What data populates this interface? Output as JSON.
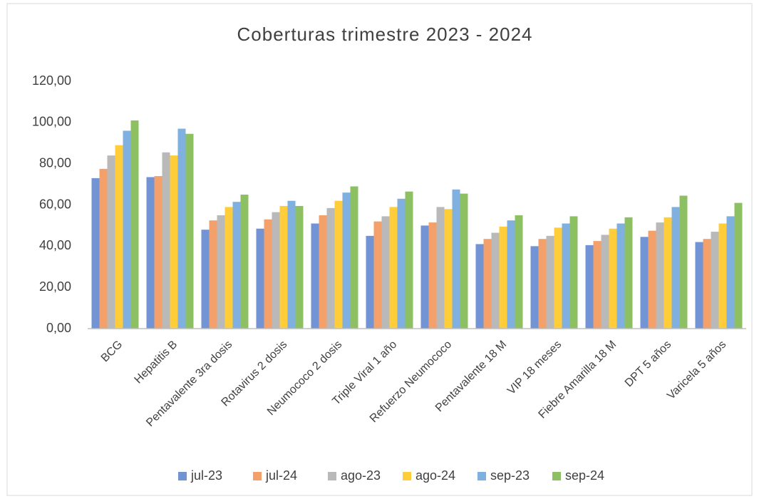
{
  "chart_data": {
    "type": "bar",
    "title": "Coberturas trimestre 2023 - 2024",
    "categories": [
      "BCG",
      "Hepatitis B",
      "Pentavalente  3ra dosis",
      "Rotavirus 2 dosis",
      "Neumococo  2 dosis",
      "Triple Viral 1 año",
      "Refuerzo  Neumococo",
      "Pentavalente  18 M",
      "VIP 18 meses",
      "Fiebre Amarilla 18 M",
      "DPT 5 años",
      "Varicela 5 años"
    ],
    "series": [
      {
        "name": "jul-23",
        "color": "#7294d4",
        "values": [
          73,
          73.5,
          48,
          48.5,
          51,
          45,
          50,
          41,
          40,
          40.5,
          44.5,
          42
        ]
      },
      {
        "name": "jul-24",
        "color": "#f4a06a",
        "values": [
          77.5,
          74,
          52.5,
          53,
          55,
          52,
          51.5,
          43.5,
          43.5,
          42.5,
          47.5,
          43.5
        ]
      },
      {
        "name": "ago-23",
        "color": "#b9b9b9",
        "values": [
          84,
          85.5,
          55,
          56.5,
          58.5,
          54.5,
          59,
          46.5,
          45,
          45.5,
          51.5,
          47
        ]
      },
      {
        "name": "ago-24",
        "color": "#ffcd3a",
        "values": [
          89,
          84,
          59,
          59.5,
          62,
          59,
          58,
          49.5,
          49,
          48.5,
          54,
          51
        ]
      },
      {
        "name": "sep-23",
        "color": "#7fb0e0",
        "values": [
          96,
          97,
          61.5,
          62,
          66,
          63,
          67.5,
          52.5,
          51,
          51,
          59,
          54.5
        ]
      },
      {
        "name": "sep-24",
        "color": "#8cc063",
        "values": [
          101,
          94.5,
          65,
          59.5,
          69,
          66.5,
          65.5,
          55,
          54.5,
          54,
          64.5,
          61
        ]
      }
    ],
    "ylim": [
      0,
      120
    ],
    "yticks": [
      {
        "value": 0,
        "label": "0,00"
      },
      {
        "value": 20,
        "label": "20,00"
      },
      {
        "value": 40,
        "label": "40,00"
      },
      {
        "value": 60,
        "label": "60,00"
      },
      {
        "value": 80,
        "label": "80,00"
      },
      {
        "value": 100,
        "label": "100,00"
      },
      {
        "value": 120,
        "label": "120,00"
      }
    ],
    "grid": false,
    "legend": "bottom"
  }
}
